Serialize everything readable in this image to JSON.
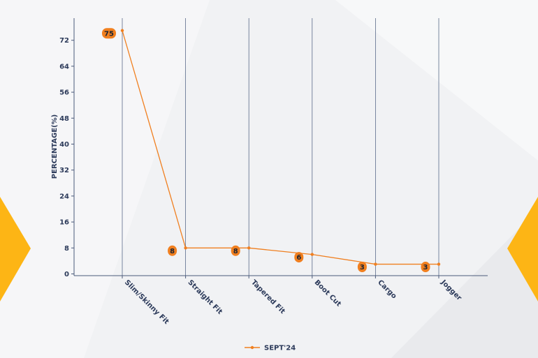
{
  "chart_data": {
    "type": "line",
    "categories": [
      "Slim/Skinny Fit",
      "Straight Fit",
      "Tapered Fit",
      "Boot Cut",
      "Cargo",
      "Jogger"
    ],
    "series": [
      {
        "name": "SEPT'24",
        "values": [
          75,
          8,
          8,
          6,
          3,
          3
        ]
      }
    ],
    "data_labels": [
      "75",
      "8",
      "8",
      "6",
      "3",
      "3"
    ],
    "y_ticks": [
      "0",
      "8",
      "16",
      "24",
      "32",
      "40",
      "48",
      "56",
      "64",
      "72"
    ],
    "ylabel": "PERCENTAGE(%)",
    "xlabel": "",
    "title": "",
    "ylim": [
      0,
      76
    ],
    "grid": "vertical",
    "legend_position": "bottom-center",
    "colors": {
      "line": "#f07f1f",
      "label_bubble": "#f07f1f",
      "axis": "#4a5a7a",
      "grid": "#5b6b8a",
      "accent": "#fdb515"
    }
  }
}
